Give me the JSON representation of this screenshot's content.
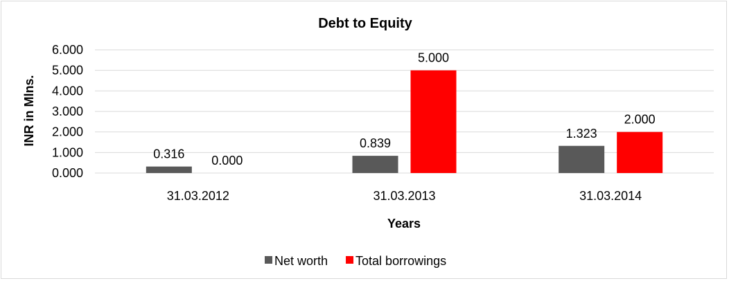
{
  "chart_data": {
    "type": "bar",
    "title": "Debt to Equity",
    "xlabel": "Years",
    "ylabel": "INR in Mlns.",
    "categories": [
      "31.03.2012",
      "31.03.2013",
      "31.03.2014"
    ],
    "series": [
      {
        "name": "Net worth",
        "values": [
          0.316,
          0.839,
          1.323
        ],
        "labels": [
          "0.316",
          "0.839",
          "1.323"
        ],
        "color": "#595959"
      },
      {
        "name": "Total borrowings",
        "values": [
          0.0,
          5.0,
          2.0
        ],
        "labels": [
          "0.000",
          "5.000",
          "2.000"
        ],
        "color": "#FF0000"
      }
    ],
    "ylim": [
      0,
      6
    ],
    "yticks": [
      "0.000",
      "1.000",
      "2.000",
      "3.000",
      "4.000",
      "5.000",
      "6.000"
    ],
    "grid": true,
    "legend": "bottom"
  }
}
